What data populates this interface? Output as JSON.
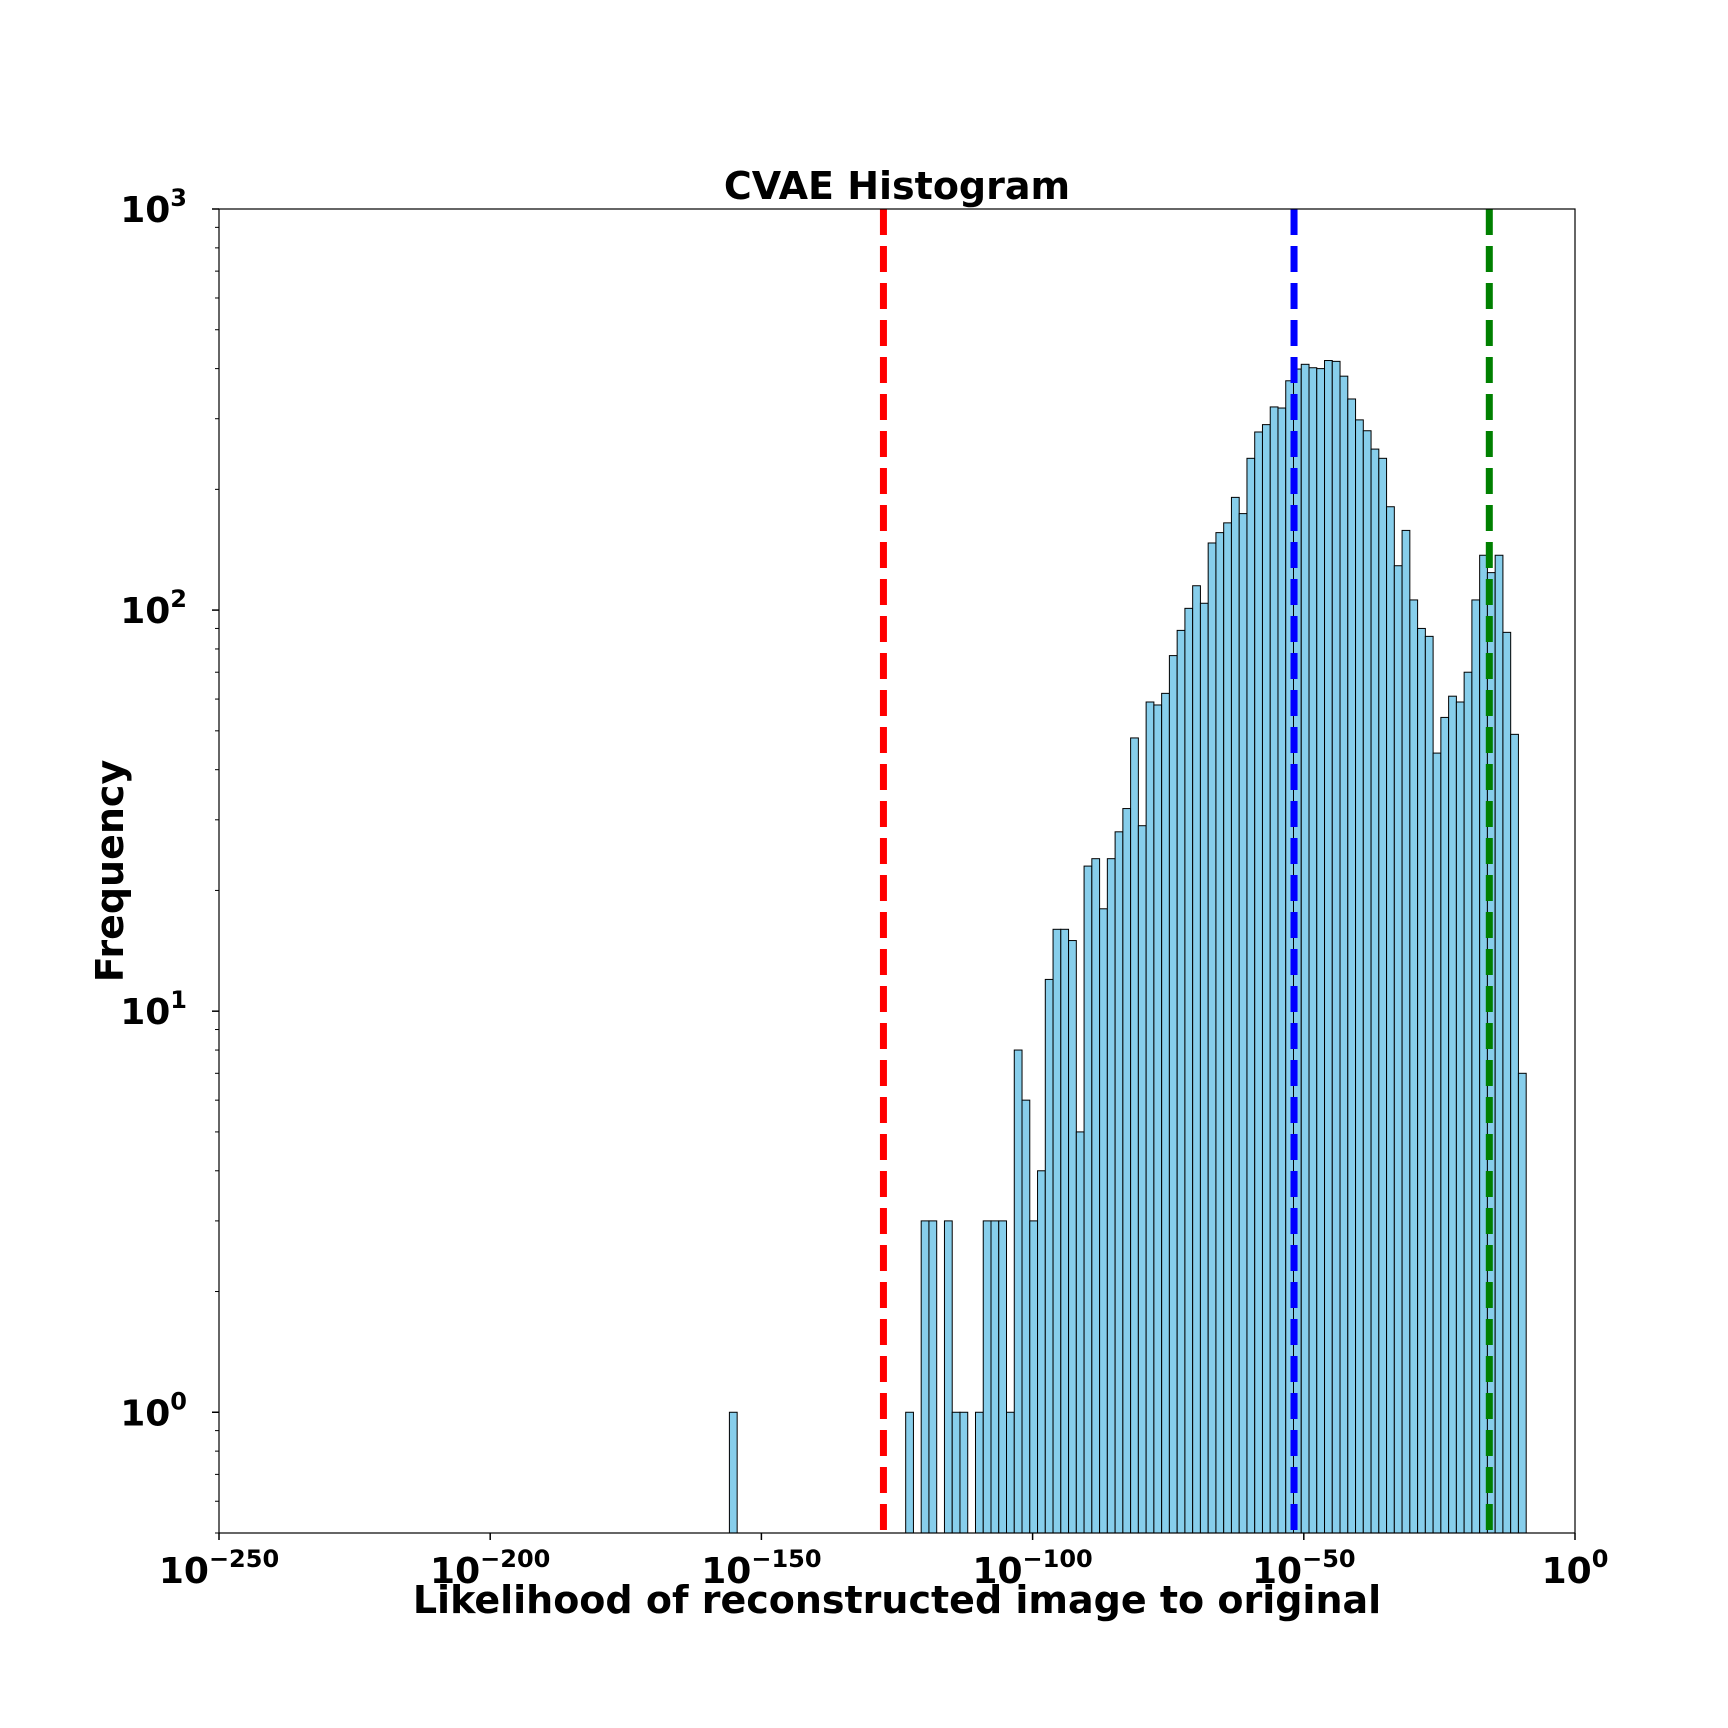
{
  "chart_data": {
    "type": "bar",
    "title": "CVAE Histogram",
    "xlabel": "Likelihood of reconstructed image to original",
    "ylabel": "Frequency",
    "x_scale": "log",
    "y_scale": "log",
    "x_unit": "log10 likelihood",
    "xlim": [
      -250,
      0
    ],
    "ylim": [
      0.5,
      1000
    ],
    "x_ticks": [
      {
        "base": "10",
        "exp": "−250"
      },
      {
        "base": "10",
        "exp": "−200"
      },
      {
        "base": "10",
        "exp": "−150"
      },
      {
        "base": "10",
        "exp": "−100"
      },
      {
        "base": "10",
        "exp": "−50"
      },
      {
        "base": "10",
        "exp": "0"
      }
    ],
    "x_tick_values": [
      -250,
      -200,
      -150,
      -100,
      -50,
      0
    ],
    "y_ticks": [
      {
        "base": "10",
        "exp": "0"
      },
      {
        "base": "10",
        "exp": "1"
      },
      {
        "base": "10",
        "exp": "2"
      },
      {
        "base": "10",
        "exp": "3"
      }
    ],
    "y_tick_values": [
      1,
      10,
      100,
      1000
    ],
    "bin_start": -123.4,
    "bin_width": 1.43,
    "frequencies": [
      1,
      0,
      3,
      3,
      0,
      3,
      1,
      1,
      0,
      1,
      3,
      3,
      3,
      1,
      8,
      6,
      3,
      4,
      12,
      16,
      16,
      15,
      5,
      23,
      24,
      18,
      24,
      28,
      32,
      48,
      29,
      59,
      58,
      62,
      77,
      89,
      101,
      115,
      104,
      147,
      156,
      165,
      191,
      174,
      239,
      278,
      290,
      321,
      319,
      373,
      399,
      410,
      402,
      400,
      419,
      417,
      383,
      336,
      298,
      280,
      252,
      239,
      181,
      129,
      158,
      106,
      90,
      86,
      44,
      54,
      61,
      59,
      70,
      106,
      137,
      124,
      137,
      88,
      49,
      7
    ],
    "isolated_bins": [
      {
        "x": -155.9,
        "value": 1
      }
    ],
    "bar_color": "#87ceeb",
    "bar_edge_color": "#000000",
    "reference_lines": [
      {
        "x": -127.5,
        "color": "#ff0000",
        "style": "dashed"
      },
      {
        "x": -51.8,
        "color": "#0000ff",
        "style": "dashed"
      },
      {
        "x": -15.8,
        "color": "#008000",
        "style": "dashed"
      }
    ]
  }
}
